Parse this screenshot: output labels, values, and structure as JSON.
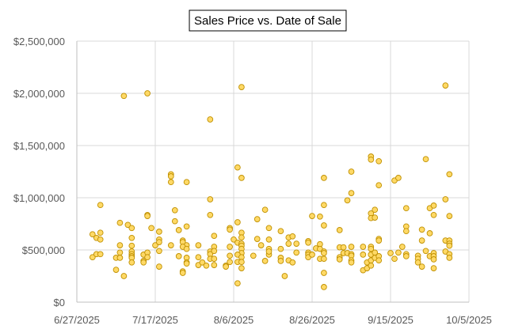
{
  "chart_data": {
    "type": "scatter",
    "title": "Sales Price vs. Date of Sale",
    "xlabel": "",
    "ylabel": "",
    "xlim": [
      "2025-06-27",
      "2025-10-05"
    ],
    "ylim": [
      0,
      2500000
    ],
    "x_ticks": [
      "6/27/2025",
      "7/17/2025",
      "8/6/2025",
      "8/26/2025",
      "9/15/2025",
      "10/5/2025"
    ],
    "y_ticks": [
      "$0",
      "$500,000",
      "$1,000,000",
      "$1,500,000",
      "$2,000,000",
      "$2,500,000"
    ],
    "grid": true,
    "legend": "none",
    "colors": {
      "marker_fill": "#FFD966",
      "marker_stroke": "#BF9000",
      "grid": "#D9D9D9"
    },
    "points": [
      [
        "2025-07-09",
        1975000
      ],
      [
        "2025-07-15",
        2000000
      ],
      [
        "2025-08-08",
        2060000
      ],
      [
        "2025-07-31",
        1750000
      ],
      [
        "2025-08-07",
        1290000
      ],
      [
        "2025-08-08",
        1190000
      ],
      [
        "2025-07-21",
        1225000
      ],
      [
        "2025-07-21",
        1205000
      ],
      [
        "2025-07-21",
        1150000
      ],
      [
        "2025-07-25",
        1150000
      ],
      [
        "2025-07-31",
        985000
      ],
      [
        "2025-07-31",
        835000
      ],
      [
        "2025-07-03",
        930000
      ],
      [
        "2025-07-22",
        880000
      ],
      [
        "2025-07-22",
        775000
      ],
      [
        "2025-07-15",
        835000
      ],
      [
        "2025-07-15",
        825000
      ],
      [
        "2025-07-08",
        760000
      ],
      [
        "2025-07-10",
        740000
      ],
      [
        "2025-07-11",
        710000
      ],
      [
        "2025-07-16",
        710000
      ],
      [
        "2025-07-18",
        675000
      ],
      [
        "2025-07-23",
        690000
      ],
      [
        "2025-07-25",
        725000
      ],
      [
        "2025-07-01",
        650000
      ],
      [
        "2025-07-03",
        665000
      ],
      [
        "2025-07-02",
        615000
      ],
      [
        "2025-07-03",
        600000
      ],
      [
        "2025-07-11",
        615000
      ],
      [
        "2025-07-08",
        545000
      ],
      [
        "2025-07-11",
        540000
      ],
      [
        "2025-07-17",
        545000
      ],
      [
        "2025-07-18",
        600000
      ],
      [
        "2025-07-18",
        575000
      ],
      [
        "2025-07-21",
        545000
      ],
      [
        "2025-07-24",
        590000
      ],
      [
        "2025-07-24",
        575000
      ],
      [
        "2025-07-25",
        545000
      ],
      [
        "2025-07-24",
        530000
      ],
      [
        "2025-07-25",
        510000
      ],
      [
        "2025-07-28",
        545000
      ],
      [
        "2025-08-01",
        635000
      ],
      [
        "2025-08-01",
        530000
      ],
      [
        "2025-07-31",
        485000
      ],
      [
        "2025-07-31",
        460000
      ],
      [
        "2025-08-01",
        490000
      ],
      [
        "2025-08-05",
        710000
      ],
      [
        "2025-08-05",
        695000
      ],
      [
        "2025-08-07",
        765000
      ],
      [
        "2025-08-06",
        600000
      ],
      [
        "2025-08-07",
        570000
      ],
      [
        "2025-08-08",
        665000
      ],
      [
        "2025-08-08",
        620000
      ],
      [
        "2025-08-08",
        560000
      ],
      [
        "2025-08-08",
        540000
      ],
      [
        "2025-08-08",
        510000
      ],
      [
        "2025-08-08",
        470000
      ],
      [
        "2025-08-05",
        530000
      ],
      [
        "2025-07-01",
        430000
      ],
      [
        "2025-07-02",
        460000
      ],
      [
        "2025-07-03",
        460000
      ],
      [
        "2025-07-07",
        425000
      ],
      [
        "2025-07-08",
        475000
      ],
      [
        "2025-07-08",
        425000
      ],
      [
        "2025-07-11",
        485000
      ],
      [
        "2025-07-11",
        460000
      ],
      [
        "2025-07-11",
        440000
      ],
      [
        "2025-07-11",
        425000
      ],
      [
        "2025-07-11",
        380000
      ],
      [
        "2025-07-14",
        455000
      ],
      [
        "2025-07-14",
        395000
      ],
      [
        "2025-07-14",
        380000
      ],
      [
        "2025-07-15",
        475000
      ],
      [
        "2025-07-15",
        430000
      ],
      [
        "2025-07-18",
        490000
      ],
      [
        "2025-07-18",
        340000
      ],
      [
        "2025-07-23",
        440000
      ],
      [
        "2025-07-25",
        425000
      ],
      [
        "2025-07-25",
        380000
      ],
      [
        "2025-07-25",
        370000
      ],
      [
        "2025-07-24",
        295000
      ],
      [
        "2025-07-24",
        280000
      ],
      [
        "2025-07-28",
        430000
      ],
      [
        "2025-07-28",
        355000
      ],
      [
        "2025-07-29",
        380000
      ],
      [
        "2025-07-30",
        350000
      ],
      [
        "2025-07-31",
        415000
      ],
      [
        "2025-08-01",
        415000
      ],
      [
        "2025-08-01",
        355000
      ],
      [
        "2025-08-04",
        350000
      ],
      [
        "2025-08-04",
        340000
      ],
      [
        "2025-08-05",
        445000
      ],
      [
        "2025-08-05",
        385000
      ],
      [
        "2025-08-07",
        455000
      ],
      [
        "2025-08-07",
        385000
      ],
      [
        "2025-08-08",
        430000
      ],
      [
        "2025-08-08",
        385000
      ],
      [
        "2025-08-08",
        325000
      ],
      [
        "2025-07-07",
        310000
      ],
      [
        "2025-07-09",
        250000
      ],
      [
        "2025-08-07",
        180000
      ],
      [
        "2025-08-11",
        445000
      ],
      [
        "2025-08-12",
        795000
      ],
      [
        "2025-08-14",
        885000
      ],
      [
        "2025-08-12",
        605000
      ],
      [
        "2025-08-13",
        545000
      ],
      [
        "2025-08-14",
        395000
      ],
      [
        "2025-08-15",
        710000
      ],
      [
        "2025-08-15",
        600000
      ],
      [
        "2025-08-15",
        510000
      ],
      [
        "2025-08-15",
        455000
      ],
      [
        "2025-08-15",
        485000
      ],
      [
        "2025-09-29",
        2075000
      ],
      [
        "2025-09-10",
        1395000
      ],
      [
        "2025-09-10",
        1365000
      ],
      [
        "2025-09-12",
        1350000
      ],
      [
        "2025-09-24",
        1370000
      ],
      [
        "2025-09-30",
        1225000
      ],
      [
        "2025-08-29",
        1190000
      ],
      [
        "2025-09-05",
        1250000
      ],
      [
        "2025-09-16",
        1165000
      ],
      [
        "2025-09-17",
        1190000
      ],
      [
        "2025-09-12",
        1120000
      ],
      [
        "2025-09-05",
        1045000
      ],
      [
        "2025-09-04",
        975000
      ],
      [
        "2025-09-29",
        985000
      ],
      [
        "2025-08-29",
        930000
      ],
      [
        "2025-08-26",
        825000
      ],
      [
        "2025-08-28",
        820000
      ],
      [
        "2025-08-29",
        735000
      ],
      [
        "2025-09-10",
        850000
      ],
      [
        "2025-09-10",
        805000
      ],
      [
        "2025-09-11",
        885000
      ],
      [
        "2025-09-11",
        810000
      ],
      [
        "2025-09-19",
        900000
      ],
      [
        "2025-09-25",
        900000
      ],
      [
        "2025-09-26",
        925000
      ],
      [
        "2025-09-26",
        835000
      ],
      [
        "2025-09-30",
        825000
      ],
      [
        "2025-08-18",
        680000
      ],
      [
        "2025-09-02",
        690000
      ],
      [
        "2025-09-19",
        725000
      ],
      [
        "2025-09-19",
        680000
      ],
      [
        "2025-09-23",
        695000
      ],
      [
        "2025-09-25",
        660000
      ],
      [
        "2025-08-20",
        620000
      ],
      [
        "2025-08-21",
        630000
      ],
      [
        "2025-08-20",
        560000
      ],
      [
        "2025-08-22",
        560000
      ],
      [
        "2025-08-25",
        585000
      ],
      [
        "2025-08-25",
        570000
      ],
      [
        "2025-09-12",
        605000
      ],
      [
        "2025-09-12",
        590000
      ],
      [
        "2025-09-23",
        590000
      ],
      [
        "2025-09-29",
        590000
      ],
      [
        "2025-09-30",
        590000
      ],
      [
        "2025-09-30",
        560000
      ],
      [
        "2025-09-30",
        540000
      ],
      [
        "2025-08-18",
        510000
      ],
      [
        "2025-08-22",
        475000
      ],
      [
        "2025-08-25",
        475000
      ],
      [
        "2025-08-25",
        455000
      ],
      [
        "2025-08-25",
        430000
      ],
      [
        "2025-08-26",
        455000
      ],
      [
        "2025-08-27",
        515000
      ],
      [
        "2025-08-28",
        555000
      ],
      [
        "2025-08-28",
        510000
      ],
      [
        "2025-08-29",
        485000
      ],
      [
        "2025-08-29",
        470000
      ],
      [
        "2025-08-28",
        415000
      ],
      [
        "2025-08-29",
        415000
      ],
      [
        "2025-08-29",
        280000
      ],
      [
        "2025-08-29",
        145000
      ],
      [
        "2025-09-02",
        525000
      ],
      [
        "2025-09-02",
        430000
      ],
      [
        "2025-09-02",
        410000
      ],
      [
        "2025-09-03",
        525000
      ],
      [
        "2025-09-03",
        470000
      ],
      [
        "2025-09-04",
        470000
      ],
      [
        "2025-09-05",
        530000
      ],
      [
        "2025-09-05",
        460000
      ],
      [
        "2025-09-05",
        445000
      ],
      [
        "2025-09-05",
        400000
      ],
      [
        "2025-09-05",
        380000
      ],
      [
        "2025-09-08",
        530000
      ],
      [
        "2025-09-08",
        455000
      ],
      [
        "2025-09-08",
        305000
      ],
      [
        "2025-09-09",
        380000
      ],
      [
        "2025-09-09",
        325000
      ],
      [
        "2025-09-10",
        530000
      ],
      [
        "2025-09-10",
        510000
      ],
      [
        "2025-09-10",
        455000
      ],
      [
        "2025-09-10",
        400000
      ],
      [
        "2025-09-10",
        350000
      ],
      [
        "2025-09-11",
        475000
      ],
      [
        "2025-09-11",
        425000
      ],
      [
        "2025-09-12",
        440000
      ],
      [
        "2025-09-12",
        400000
      ],
      [
        "2025-09-15",
        470000
      ],
      [
        "2025-09-16",
        415000
      ],
      [
        "2025-09-17",
        475000
      ],
      [
        "2025-09-18",
        530000
      ],
      [
        "2025-09-19",
        460000
      ],
      [
        "2025-09-19",
        440000
      ],
      [
        "2025-09-22",
        445000
      ],
      [
        "2025-09-22",
        415000
      ],
      [
        "2025-09-22",
        380000
      ],
      [
        "2025-09-23",
        340000
      ],
      [
        "2025-09-24",
        490000
      ],
      [
        "2025-09-25",
        440000
      ],
      [
        "2025-09-26",
        470000
      ],
      [
        "2025-09-26",
        440000
      ],
      [
        "2025-09-26",
        410000
      ],
      [
        "2025-09-26",
        325000
      ],
      [
        "2025-09-29",
        485000
      ],
      [
        "2025-09-30",
        460000
      ],
      [
        "2025-09-30",
        425000
      ],
      [
        "2025-08-18",
        425000
      ],
      [
        "2025-08-18",
        395000
      ],
      [
        "2025-08-19",
        250000
      ],
      [
        "2025-08-20",
        400000
      ],
      [
        "2025-08-21",
        380000
      ]
    ]
  }
}
